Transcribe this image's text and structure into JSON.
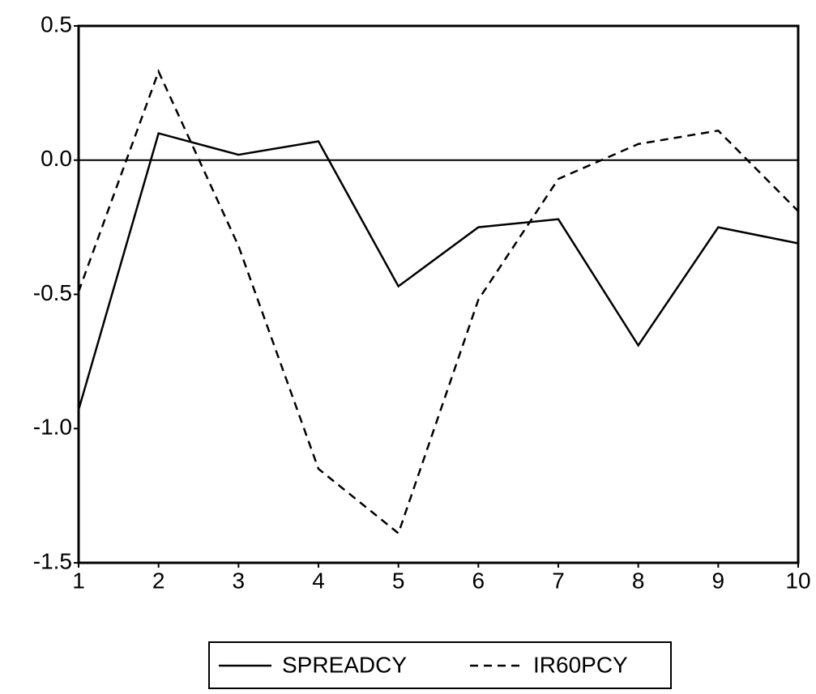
{
  "chart_data": {
    "type": "line",
    "x": [
      1,
      2,
      3,
      4,
      5,
      6,
      7,
      8,
      9,
      10
    ],
    "series": [
      {
        "name": "SPREADCY",
        "color": "#000000",
        "dash": "solid",
        "values": [
          -0.93,
          0.1,
          0.02,
          0.07,
          -0.47,
          -0.25,
          -0.22,
          -0.69,
          -0.25,
          -0.31
        ]
      },
      {
        "name": "IR60PCY",
        "color": "#000000",
        "dash": "dashed",
        "values": [
          -0.49,
          0.33,
          -0.32,
          -1.15,
          -1.39,
          -0.52,
          -0.07,
          0.06,
          0.11,
          -0.19
        ]
      }
    ],
    "xlim": [
      1,
      10
    ],
    "xticks": [
      1,
      2,
      3,
      4,
      5,
      6,
      7,
      8,
      9,
      10
    ],
    "ylim": [
      -1.5,
      0.5
    ],
    "yticks": [
      0.5,
      {
        "value": 0,
        "label": "0.0"
      },
      -0.5,
      {
        "value": -1,
        "label": "-1.0"
      },
      -1.5
    ],
    "reference_line": 0,
    "legend": "bottom"
  }
}
